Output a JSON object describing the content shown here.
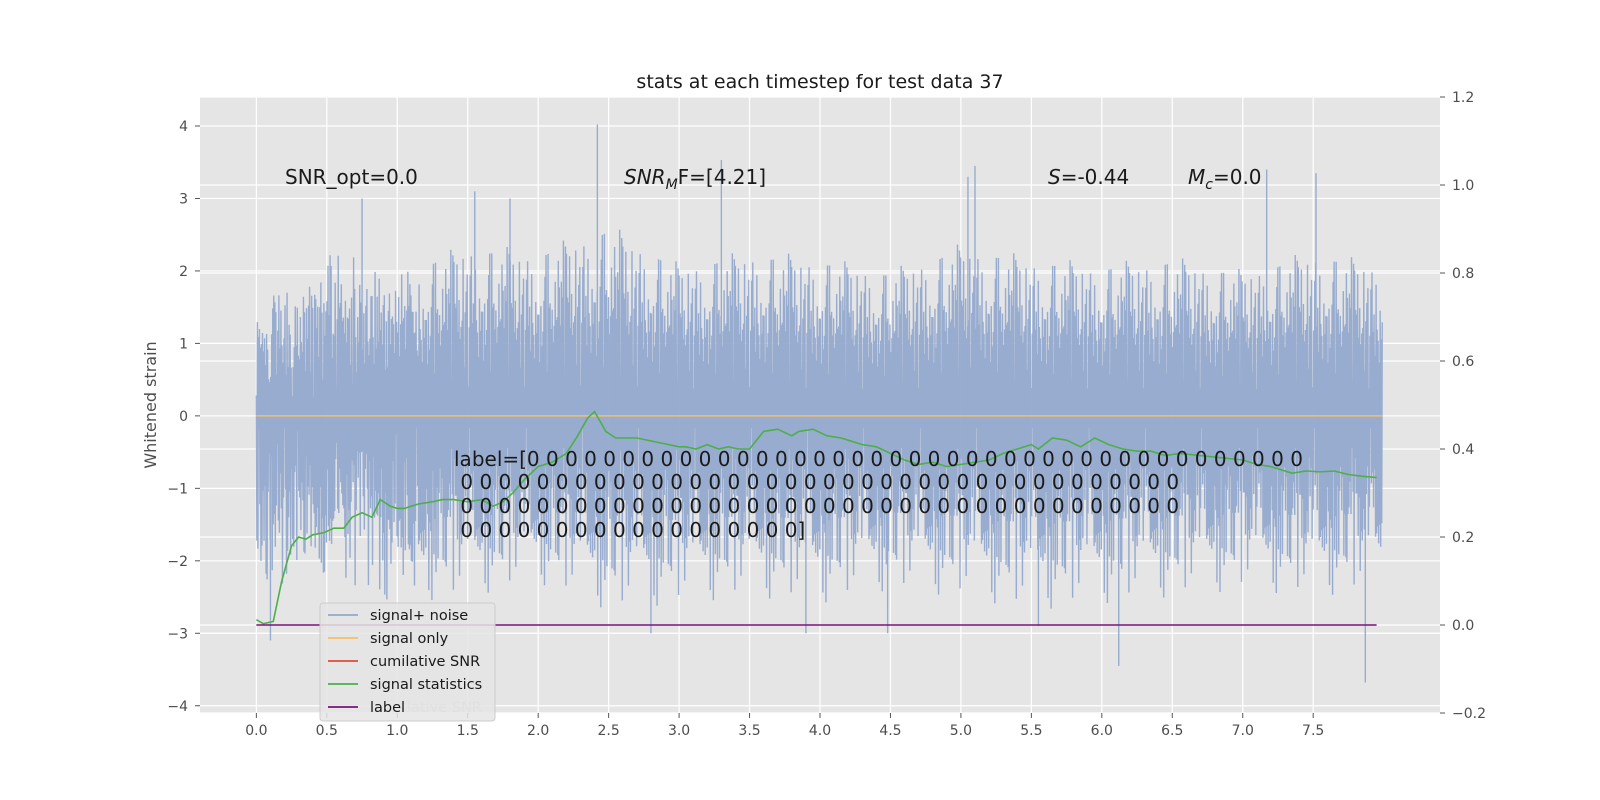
{
  "chart_data": {
    "type": "line",
    "title": "stats at each timestep for test data 37",
    "ylabel": "Whitened strain",
    "xlim": [
      -0.4,
      8.4
    ],
    "ylim": [
      -4.1,
      4.4
    ],
    "y2lim": [
      -0.2,
      1.2
    ],
    "grid": true,
    "x_ticks": [
      0.0,
      0.5,
      1.0,
      1.5,
      2.0,
      2.5,
      3.0,
      3.5,
      4.0,
      4.5,
      5.0,
      5.5,
      6.0,
      6.5,
      7.0,
      7.5
    ],
    "x_tick_labels": [
      "0.0",
      "0.5",
      "1.0",
      "1.5",
      "2.0",
      "2.5",
      "3.0",
      "3.5",
      "4.0",
      "4.5",
      "5.0",
      "5.5",
      "6.0",
      "6.5",
      "7.0",
      "7.5"
    ],
    "y_ticks": [
      4,
      3,
      2,
      1,
      0,
      -1,
      -2,
      -3,
      -4
    ],
    "y_tick_labels": [
      "4",
      "3",
      "2",
      "1",
      "0",
      "−1",
      "−2",
      "−3",
      "−4"
    ],
    "y2_ticks": [
      1.2,
      1.0,
      0.8,
      0.6,
      0.4,
      0.2,
      0.0,
      -0.2
    ],
    "y2_tick_labels": [
      "1.2",
      "1.0",
      "0.8",
      "0.6",
      "0.4",
      "0.2",
      "0.0",
      "−0.2"
    ],
    "annotations": {
      "snr_opt": "SNR_opt=0.0",
      "snr_mf_main": "SNR",
      "snr_mf_sub": "M",
      "snr_mf_rest": "F=[4.21]",
      "s_main": "S",
      "s_rest": "=-0.44",
      "mc_main": "M",
      "mc_sub": "c",
      "mc_rest": "=0.0",
      "label_lines": [
        "label=[0 0 0 0 0 0 0 0 0 0 0 0 0 0 0 0 0 0 0 0 0 0 0 0 0 0 0 0 0 0 0 0 0 0 0 0 0 0 0 0 0",
        " 0 0 0 0 0 0 0 0 0 0 0 0 0 0 0 0 0 0 0 0 0 0 0 0 0 0 0 0 0 0 0 0 0 0 0 0 0 0",
        " 0 0 0 0 0 0 0 0 0 0 0 0 0 0 0 0 0 0 0 0 0 0 0 0 0 0 0 0 0 0 0 0 0 0 0 0 0 0",
        " 0 0 0 0 0 0 0 0 0 0 0 0 0 0 0 0 0 0]"
      ]
    },
    "noise_envelope": {
      "x": [
        0.0,
        0.5,
        1.0,
        1.5,
        2.0,
        2.5,
        3.0,
        3.5,
        4.0,
        4.5,
        5.0,
        5.5,
        6.0,
        6.5,
        7.0,
        7.5,
        7.99
      ],
      "upper": [
        2.0,
        2.4,
        2.2,
        2.6,
        2.5,
        2.9,
        2.3,
        2.5,
        2.4,
        2.2,
        2.6,
        2.4,
        2.3,
        2.4,
        2.2,
        2.5,
        2.3
      ],
      "lower": [
        -2.6,
        -2.5,
        -2.7,
        -2.6,
        -2.4,
        -2.8,
        -2.7,
        -2.6,
        -2.7,
        -2.5,
        -2.6,
        -2.8,
        -2.7,
        -2.6,
        -2.5,
        -2.6,
        -2.5
      ],
      "spikes_up": [
        [
          2.42,
          4.02
        ],
        [
          3.3,
          3.53
        ],
        [
          5.1,
          3.45
        ],
        [
          5.05,
          3.3
        ],
        [
          7.17,
          3.4
        ],
        [
          7.52,
          3.35
        ],
        [
          0.75,
          3.0
        ],
        [
          1.8,
          3.0
        ],
        [
          1.55,
          3.1
        ]
      ],
      "spikes_down": [
        [
          6.12,
          -3.45
        ],
        [
          7.87,
          -3.68
        ],
        [
          0.1,
          -3.1
        ],
        [
          2.8,
          -3.0
        ],
        [
          3.9,
          -3.0
        ],
        [
          4.48,
          -3.0
        ],
        [
          5.55,
          -2.9
        ]
      ]
    },
    "series": [
      {
        "name": "signal+ noise",
        "color": "#93a9cd",
        "axis": "left",
        "values_summary": "dense noise envelope"
      },
      {
        "name": "signal only",
        "color": "#f4c064",
        "axis": "left",
        "x": [
          0.0,
          7.99
        ],
        "y": [
          0.0,
          0.0
        ]
      },
      {
        "name": "cumilative SNR",
        "color": "#e24a33",
        "axis": "right",
        "x": [],
        "y": []
      },
      {
        "name": "signal statistics",
        "color": "#4daf4a",
        "axis": "right",
        "x": [
          0.0,
          0.05,
          0.12,
          0.18,
          0.25,
          0.3,
          0.35,
          0.4,
          0.48,
          0.55,
          0.62,
          0.68,
          0.75,
          0.82,
          0.88,
          0.95,
          1.0,
          1.05,
          1.15,
          1.25,
          1.32,
          1.4,
          1.5,
          1.6,
          1.68,
          1.75,
          1.82,
          1.9,
          2.0,
          2.1,
          2.2,
          2.28,
          2.35,
          2.4,
          2.48,
          2.55,
          2.7,
          2.85,
          3.0,
          3.05,
          3.12,
          3.2,
          3.28,
          3.35,
          3.42,
          3.5,
          3.6,
          3.7,
          3.8,
          3.85,
          3.95,
          4.05,
          4.15,
          4.2,
          4.3,
          4.4,
          4.5,
          4.6,
          4.7,
          4.8,
          4.9,
          5.0,
          5.1,
          5.2,
          5.3,
          5.4,
          5.5,
          5.55,
          5.65,
          5.75,
          5.85,
          5.95,
          6.05,
          6.15,
          6.25,
          6.35,
          6.45,
          6.55,
          6.7,
          6.85,
          7.0,
          7.1,
          7.2,
          7.35,
          7.45,
          7.55,
          7.65,
          7.75,
          7.85,
          7.95
        ],
        "y": [
          0.012,
          0.003,
          0.008,
          0.1,
          0.18,
          0.2,
          0.195,
          0.205,
          0.21,
          0.22,
          0.22,
          0.245,
          0.255,
          0.245,
          0.285,
          0.27,
          0.265,
          0.265,
          0.275,
          0.28,
          0.285,
          0.285,
          0.28,
          0.285,
          0.27,
          0.28,
          0.3,
          0.33,
          0.36,
          0.37,
          0.39,
          0.43,
          0.47,
          0.485,
          0.44,
          0.425,
          0.425,
          0.415,
          0.405,
          0.405,
          0.4,
          0.41,
          0.4,
          0.405,
          0.4,
          0.4,
          0.44,
          0.445,
          0.43,
          0.44,
          0.445,
          0.43,
          0.425,
          0.42,
          0.41,
          0.405,
          0.39,
          0.375,
          0.365,
          0.37,
          0.36,
          0.365,
          0.37,
          0.375,
          0.39,
          0.4,
          0.41,
          0.4,
          0.425,
          0.42,
          0.405,
          0.425,
          0.41,
          0.4,
          0.395,
          0.395,
          0.385,
          0.39,
          0.385,
          0.38,
          0.375,
          0.365,
          0.36,
          0.345,
          0.35,
          0.348,
          0.35,
          0.342,
          0.338,
          0.335
        ]
      },
      {
        "name": "label",
        "color": "#7b1278",
        "axis": "right",
        "x": [
          0.0,
          7.95
        ],
        "y": [
          0.0,
          0.0
        ]
      }
    ],
    "legend": {
      "placement": "lower-left",
      "ghost_text": "lative SNR"
    }
  }
}
